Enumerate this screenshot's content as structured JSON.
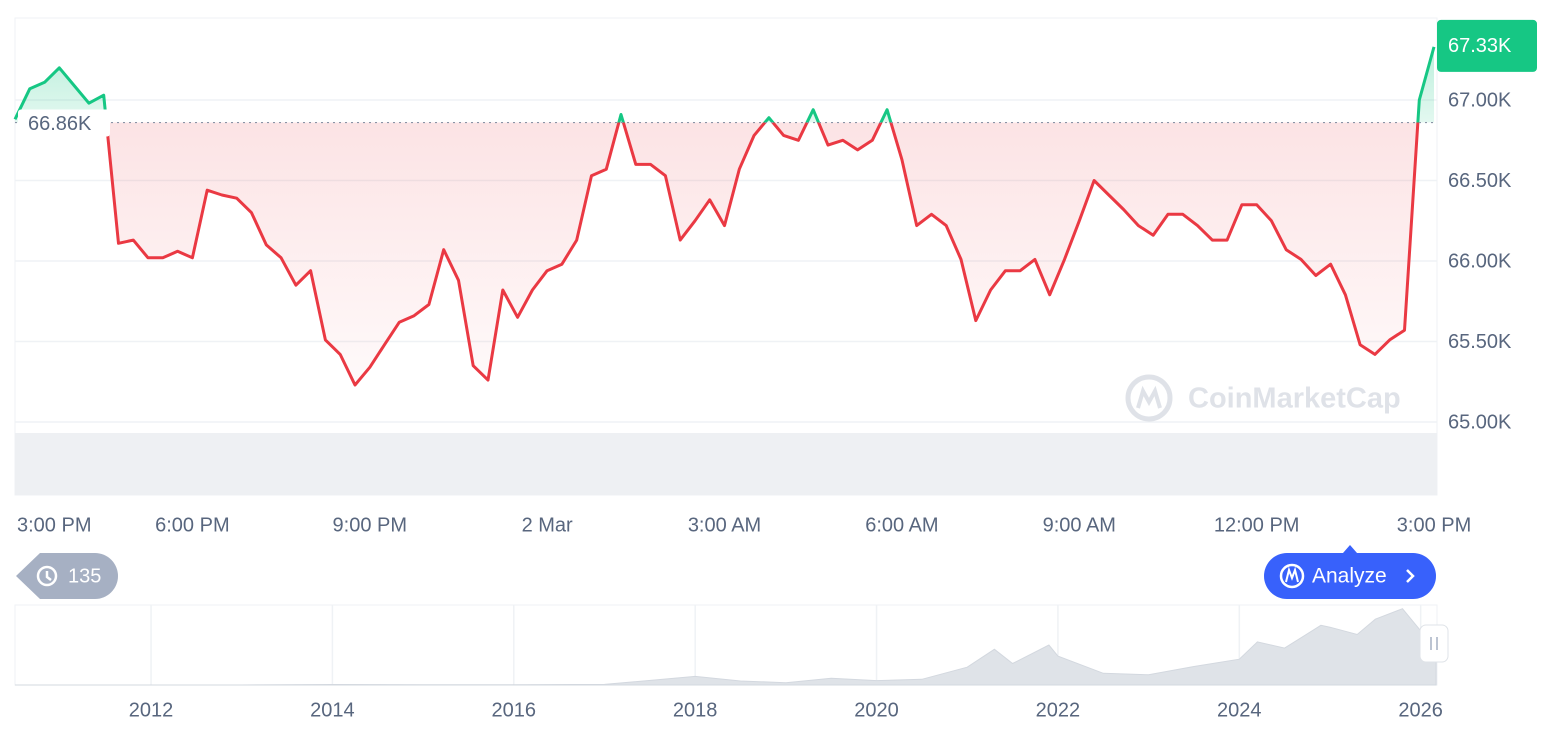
{
  "chart_data": [
    {
      "type": "line",
      "x": [
        15,
        15.25,
        15.5,
        15.75,
        16,
        16.25,
        16.5,
        16.75,
        17,
        17.25,
        17.5,
        17.75,
        18,
        18.25,
        18.5,
        18.75,
        19,
        19.25,
        19.5,
        19.75,
        20,
        20.25,
        20.5,
        20.75,
        21,
        21.25,
        21.5,
        21.75,
        22,
        22.25,
        22.5,
        22.75,
        23,
        23.25,
        23.5,
        23.75,
        24,
        24.25,
        24.5,
        24.75,
        25,
        25.25,
        25.5,
        25.75,
        26,
        26.25,
        26.5,
        26.75,
        27,
        27.25,
        27.5,
        27.75,
        28,
        28.25,
        28.5,
        28.75,
        29,
        29.25,
        29.5,
        29.75,
        30,
        30.25,
        30.5,
        30.75,
        31,
        31.25,
        31.5,
        31.75,
        32,
        32.25,
        32.5,
        32.75,
        33,
        33.25,
        33.5,
        33.75,
        34,
        34.25,
        34.5,
        34.75,
        35,
        35.25,
        35.5,
        35.75,
        36,
        36.25,
        36.5,
        36.75,
        37,
        37.25,
        37.5,
        37.75,
        38,
        38.25,
        38.5,
        38.75,
        39
      ],
      "values": [
        66.88,
        67.07,
        67.11,
        67.2,
        67.09,
        66.98,
        67.03,
        66.11,
        66.13,
        66.02,
        66.02,
        66.06,
        66.02,
        66.44,
        66.41,
        66.39,
        66.3,
        66.1,
        66.02,
        65.85,
        65.94,
        65.51,
        65.42,
        65.23,
        65.34,
        65.48,
        65.62,
        65.66,
        65.73,
        66.07,
        65.88,
        65.35,
        65.26,
        65.82,
        65.65,
        65.82,
        65.94,
        65.98,
        66.13,
        66.53,
        66.57,
        66.91,
        66.6,
        66.6,
        66.53,
        66.13,
        66.25,
        66.38,
        66.22,
        66.57,
        66.78,
        66.89,
        66.78,
        66.75,
        66.94,
        66.72,
        66.75,
        66.69,
        66.75,
        66.94,
        66.63,
        66.22,
        66.29,
        66.22,
        66.01,
        65.63,
        65.82,
        65.94,
        65.94,
        66.01,
        65.79,
        66.01,
        66.25,
        66.5,
        66.41,
        66.32,
        66.22,
        66.16,
        66.29,
        66.29,
        66.22,
        66.13,
        66.13,
        66.35,
        66.35,
        66.25,
        66.07,
        66.01,
        65.91,
        65.98,
        65.79,
        65.48,
        65.42,
        65.51,
        65.57,
        67.0,
        67.33
      ],
      "xlim": [
        15,
        39.05
      ],
      "xticks": [
        {
          "value": 15,
          "label": "3:00 PM"
        },
        {
          "value": 18,
          "label": "6:00 PM"
        },
        {
          "value": 21,
          "label": "9:00 PM"
        },
        {
          "value": 24,
          "label": "2 Mar"
        },
        {
          "value": 27,
          "label": "3:00 AM"
        },
        {
          "value": 30,
          "label": "6:00 AM"
        },
        {
          "value": 33,
          "label": "9:00 AM"
        },
        {
          "value": 36,
          "label": "12:00 PM"
        },
        {
          "value": 39,
          "label": "3:00 PM"
        }
      ],
      "ylim": [
        65.0,
        67.5
      ],
      "yticks": [
        {
          "value": 65.0,
          "label": "65.00K"
        },
        {
          "value": 65.5,
          "label": "65.50K"
        },
        {
          "value": 66.0,
          "label": "66.00K"
        },
        {
          "value": 66.5,
          "label": "66.50K"
        },
        {
          "value": 67.0,
          "label": "67.00K"
        }
      ],
      "baseline": {
        "value": 66.86,
        "label": "66.86K"
      },
      "last_price": {
        "value": 67.33,
        "label": "67.33K"
      },
      "up_color": "#16c784",
      "down_color": "#ea3943",
      "grid": true,
      "watermark": "CoinMarketCap"
    },
    {
      "type": "area",
      "x": [
        2010.5,
        2012,
        2013,
        2014,
        2015,
        2016,
        2017,
        2018,
        2018.5,
        2019,
        2019.5,
        2020,
        2020.5,
        2021,
        2021.3,
        2021.5,
        2021.9,
        2022,
        2022.5,
        2023,
        2023.5,
        2024,
        2024.2,
        2024.5,
        2024.9,
        2025,
        2025.3,
        2025.5,
        2025.8,
        2026,
        2026.17
      ],
      "values": [
        0,
        0.005,
        0.013,
        0.8,
        0.3,
        0.43,
        1.0,
        14,
        6.5,
        3.7,
        11,
        7.2,
        9.2,
        29,
        58,
        35,
        65,
        47,
        19,
        16.5,
        30,
        42,
        70,
        60,
        97,
        94,
        82,
        107,
        124,
        88,
        67
      ],
      "xlim": [
        2010.5,
        2026.18
      ],
      "xticks": [
        2012,
        2014,
        2016,
        2018,
        2020,
        2022,
        2024,
        2026
      ],
      "ylim": [
        0,
        130
      ],
      "color": "#dfe3e8"
    }
  ],
  "ui": {
    "history_count": 135,
    "analyze_button": "Analyze"
  }
}
